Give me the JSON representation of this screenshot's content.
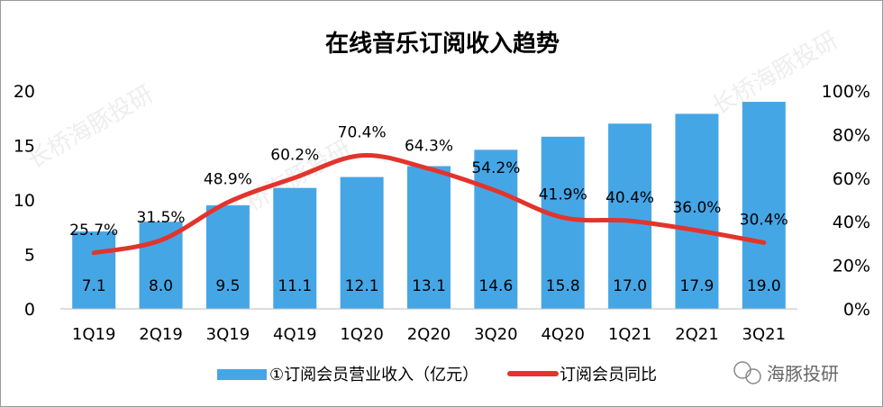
{
  "chart_data": {
    "type": "bar",
    "title": "在线音乐订阅收入趋势",
    "categories": [
      "1Q19",
      "2Q19",
      "3Q19",
      "4Q19",
      "1Q20",
      "2Q20",
      "3Q20",
      "4Q20",
      "1Q21",
      "2Q21",
      "3Q21"
    ],
    "series": [
      {
        "name": "①订阅会员营业收入（亿元）",
        "type": "bar",
        "axis": "left",
        "color": "#45A6E6",
        "values": [
          7.1,
          8.0,
          9.5,
          11.1,
          12.1,
          13.1,
          14.6,
          15.8,
          17.0,
          17.9,
          19.0
        ],
        "labels": [
          "7.1",
          "8.0",
          "9.5",
          "11.1",
          "12.1",
          "13.1",
          "14.6",
          "15.8",
          "17.0",
          "17.9",
          "19.0"
        ]
      },
      {
        "name": "订阅会员同比",
        "type": "line",
        "axis": "right",
        "color": "#E3342C",
        "values": [
          25.7,
          31.5,
          48.9,
          60.2,
          70.4,
          64.3,
          54.2,
          41.9,
          40.4,
          36.0,
          30.4
        ],
        "labels": [
          "25.7%",
          "31.5%",
          "48.9%",
          "60.2%",
          "70.4%",
          "64.3%",
          "54.2%",
          "41.9%",
          "40.4%",
          "36.0%",
          "30.4%"
        ]
      }
    ],
    "ylim": [
      0,
      20
    ],
    "y_ticks": [
      "0",
      "5",
      "10",
      "15",
      "20"
    ],
    "y2lim": [
      0,
      100
    ],
    "y2_ticks": [
      "0%",
      "20%",
      "40%",
      "60%",
      "80%",
      "100%"
    ],
    "legend_placement": "bottom",
    "grid": false
  },
  "watermark": "长桥海豚投研",
  "brand": "海豚投研"
}
